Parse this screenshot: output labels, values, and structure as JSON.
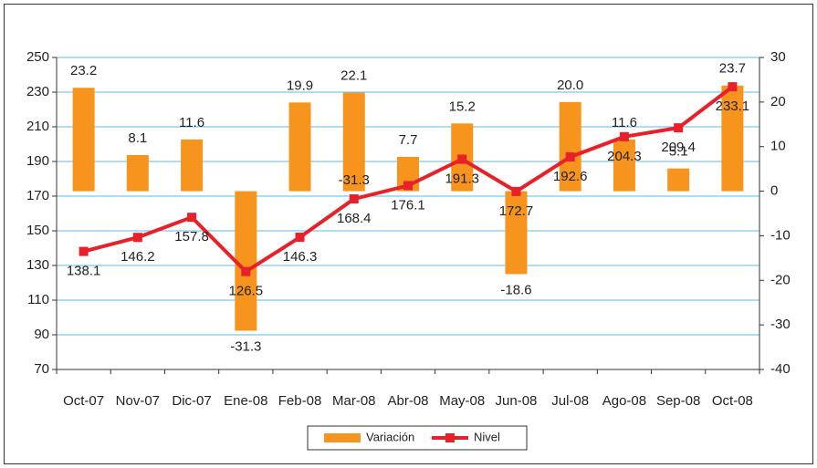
{
  "chart_data": {
    "type": "bar-line",
    "categories": [
      "Oct-07",
      "Nov-07",
      "Dic-07",
      "Ene-08",
      "Feb-08",
      "Mar-08",
      "Abr-08",
      "May-08",
      "Jun-08",
      "Jul-08",
      "Ago-08",
      "Sep-08",
      "Oct-08"
    ],
    "series": [
      {
        "name": "Variación",
        "type": "bar",
        "axis": "y2",
        "color": "#f7941d",
        "values": [
          23.2,
          8.1,
          11.6,
          -31.3,
          19.9,
          22.1,
          7.7,
          15.2,
          -18.6,
          20.0,
          11.6,
          5.1,
          23.7
        ],
        "value_labels": [
          "23.2",
          "8.1",
          "11.6",
          "-31.3",
          "19.9",
          "22.1",
          "7.7",
          "15.2",
          "-18.6",
          "20.0",
          "11.6",
          "5.1",
          "23.7"
        ]
      },
      {
        "name": "Nivel",
        "type": "line",
        "axis": "y",
        "color": "#e8202a",
        "values": [
          138.1,
          146.2,
          157.8,
          126.5,
          146.3,
          168.4,
          176.1,
          191.3,
          172.7,
          192.6,
          204.3,
          209.4,
          233.1
        ]
      }
    ],
    "annotations": [
      "-31.3"
    ],
    "ylim": [
      70,
      250
    ],
    "yticks": [
      70,
      90,
      110,
      130,
      150,
      170,
      190,
      210,
      230,
      250
    ],
    "y2lim": [
      -40,
      30
    ],
    "y2ticks": [
      -40,
      -30,
      -20,
      -10,
      0,
      10,
      20,
      30
    ],
    "grid": true,
    "legend": "bottom"
  }
}
